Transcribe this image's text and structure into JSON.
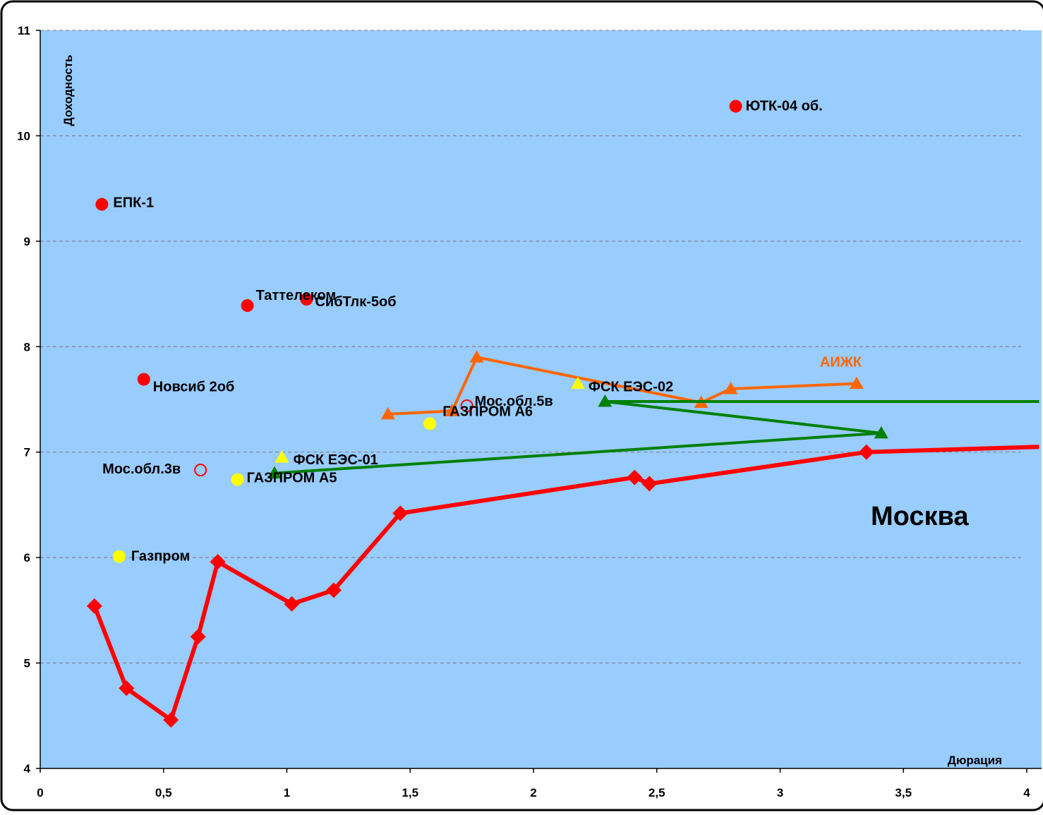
{
  "chart_data": {
    "type": "scatter",
    "title": "",
    "xlabel": "Дюрация",
    "ylabel": "Доходность",
    "xlim": [
      0,
      4
    ],
    "ylim": [
      4,
      11
    ],
    "x_ticks": [
      "0",
      "0,5",
      "1",
      "1,5",
      "2",
      "2,5",
      "3",
      "3,5",
      "4"
    ],
    "y_ticks": [
      "4",
      "5",
      "6",
      "7",
      "8",
      "9",
      "10",
      "11"
    ],
    "grid": "horizontal dashed",
    "plot_background": "#99CCFF",
    "annotation": "Москва",
    "series": [
      {
        "name": "Москва",
        "kind": "line",
        "marker": "diamond",
        "color": "#FF0000",
        "points": [
          [
            0.22,
            5.54
          ],
          [
            0.35,
            4.76
          ],
          [
            0.53,
            4.46
          ],
          [
            0.64,
            5.25
          ],
          [
            0.72,
            5.96
          ],
          [
            1.02,
            5.56
          ],
          [
            1.19,
            5.69
          ],
          [
            1.46,
            6.42
          ],
          [
            2.41,
            6.76
          ],
          [
            2.47,
            6.7
          ],
          [
            3.35,
            7.0
          ],
          [
            4.05,
            7.05
          ]
        ]
      },
      {
        "name": "АИЖК",
        "kind": "line",
        "marker": "triangle",
        "color": "#FF6600",
        "points": [
          [
            1.41,
            7.36
          ],
          [
            1.67,
            7.39
          ],
          [
            1.77,
            7.9
          ],
          [
            2.68,
            7.47
          ],
          [
            2.8,
            7.6
          ],
          [
            3.31,
            7.65
          ]
        ]
      },
      {
        "name": "",
        "kind": "line",
        "marker": "triangle",
        "color": "#008000",
        "points": [
          [
            4.05,
            7.48
          ],
          [
            2.29,
            7.48
          ],
          [
            3.41,
            7.18
          ],
          [
            0.95,
            6.8
          ]
        ]
      },
      {
        "name": "",
        "kind": "scatter",
        "marker": "circle",
        "color": "#FF0000",
        "points": [
          {
            "x": 2.82,
            "y": 10.28,
            "label": "ЮТК-04 об."
          },
          {
            "x": 0.25,
            "y": 9.35,
            "label": "ЕПК-1"
          },
          {
            "x": 0.84,
            "y": 8.39,
            "label": "Таттелеком"
          },
          {
            "x": 1.08,
            "y": 8.45,
            "label": "СибТлк-5об"
          },
          {
            "x": 0.42,
            "y": 7.69,
            "label": "Новсиб 2об"
          }
        ]
      },
      {
        "name": "",
        "kind": "scatter",
        "marker": "circle",
        "color": "#FFFF00",
        "points": [
          {
            "x": 1.58,
            "y": 7.27,
            "label": "ГАЗПРОМ А6"
          },
          {
            "x": 0.8,
            "y": 6.74,
            "label": "ГАЗПРОМ А5"
          },
          {
            "x": 0.32,
            "y": 6.01,
            "label": "Газпром"
          }
        ]
      },
      {
        "name": "",
        "kind": "scatter",
        "marker": "open-circle",
        "color": "#FF0000",
        "points": [
          {
            "x": 1.73,
            "y": 7.44,
            "label": "Мос.обл.5в"
          },
          {
            "x": 0.65,
            "y": 6.83,
            "label": "Мос.обл.3в"
          }
        ]
      },
      {
        "name": "",
        "kind": "scatter",
        "marker": "triangle",
        "color": "#FFFF00",
        "points": [
          {
            "x": 2.18,
            "y": 7.65,
            "label": "ФСК ЕЭС-02"
          },
          {
            "x": 0.98,
            "y": 6.95,
            "label": "ФСК ЕЭС-01"
          }
        ]
      }
    ],
    "series_label": {
      "АИЖК": "АИЖК"
    }
  }
}
